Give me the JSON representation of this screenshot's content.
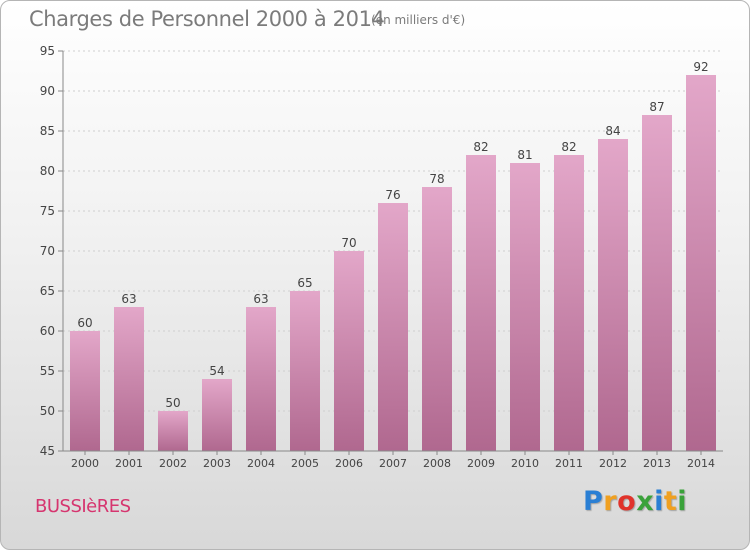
{
  "header": {
    "title": "Charges de Personnel 2000 à 2014",
    "subtitle": "(en milliers d'€)"
  },
  "footer": {
    "commune": "BUSSIèRES",
    "logo_letters": [
      {
        "ch": "P",
        "color": "#2a7fd4"
      },
      {
        "ch": "r",
        "color": "#f0a020"
      },
      {
        "ch": "o",
        "color": "#e0332b"
      },
      {
        "ch": "x",
        "color": "#3aa23a"
      },
      {
        "ch": "i",
        "color": "#2a7fd4"
      },
      {
        "ch": "t",
        "color": "#f0a020"
      },
      {
        "ch": "i",
        "color": "#3aa23a"
      }
    ]
  },
  "colors": {
    "bar_top": "#e3a7c9",
    "bar_bottom": "#b0688f",
    "axis": "#888888",
    "grid": "#cfcfcf",
    "label": "#444444",
    "commune": "#d6356f"
  },
  "chart_data": {
    "type": "bar",
    "categories": [
      "2000",
      "2001",
      "2002",
      "2003",
      "2004",
      "2005",
      "2006",
      "2007",
      "2008",
      "2009",
      "2010",
      "2011",
      "2012",
      "2013",
      "2014"
    ],
    "values": [
      60,
      63,
      50,
      54,
      63,
      65,
      70,
      76,
      78,
      82,
      81,
      82,
      84,
      87,
      92
    ],
    "ylim": [
      45,
      95
    ],
    "yticks": [
      45,
      50,
      55,
      60,
      65,
      70,
      75,
      80,
      85,
      90,
      95
    ],
    "grid": true,
    "data_labels": true
  }
}
